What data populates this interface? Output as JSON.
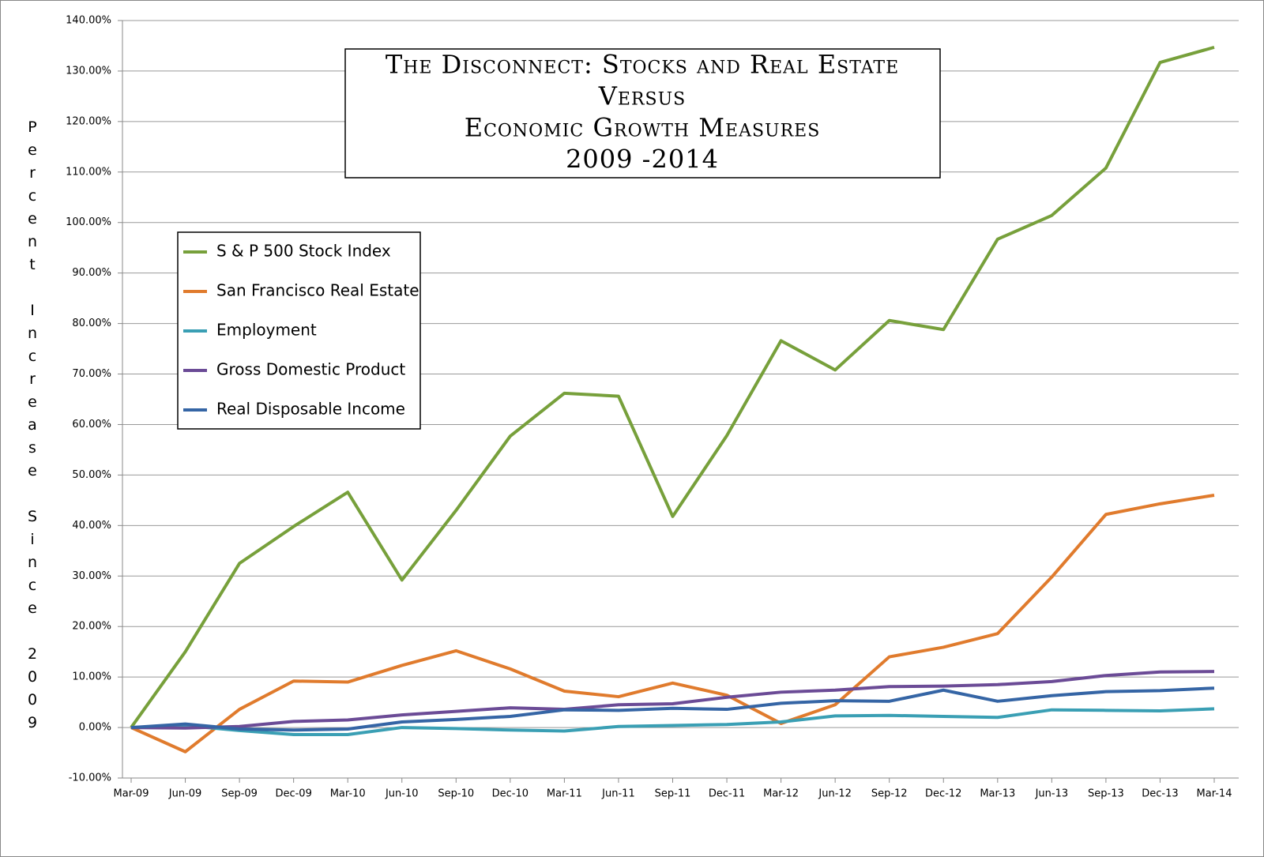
{
  "chart_data": {
    "type": "line",
    "title": [
      "The Disconnect: Stocks and Real Estate",
      "Versus",
      "Economic Growth Measures",
      "2009 -2014"
    ],
    "y_label": "Percent Increase Since 2009",
    "categories": [
      "Mar-09",
      "Jun-09",
      "Sep-09",
      "Dec-09",
      "Mar-10",
      "Jun-10",
      "Sep-10",
      "Dec-10",
      "Mar-11",
      "Jun-11",
      "Sep-11",
      "Dec-11",
      "Mar-12",
      "Jun-12",
      "Sep-12",
      "Dec-12",
      "Mar-13",
      "Jun-13",
      "Sep-13",
      "Dec-13",
      "Mar-14"
    ],
    "series": [
      {
        "name": "S & P 500 Stock Index",
        "color": "#77a03b",
        "values": [
          0,
          15,
          32.5,
          39.8,
          46.6,
          29.2,
          43,
          57.7,
          66.2,
          65.6,
          41.8,
          57.8,
          76.6,
          70.8,
          80.6,
          78.8,
          96.7,
          101.4,
          110.8,
          131.7,
          134.7
        ]
      },
      {
        "name": "San Francisco Real Estate",
        "color": "#e07b2d",
        "values": [
          0,
          -4.8,
          3.6,
          9.2,
          9.0,
          12.3,
          15.2,
          11.6,
          7.2,
          6.1,
          8.8,
          6.4,
          0.8,
          4.5,
          14.0,
          15.9,
          18.6,
          29.8,
          42.2,
          44.3,
          46.0
        ]
      },
      {
        "name": "Employment",
        "color": "#3a9fb4",
        "values": [
          0,
          0.4,
          -0.6,
          -1.4,
          -1.4,
          0,
          -0.2,
          -0.5,
          -0.7,
          0.2,
          0.4,
          0.6,
          1.1,
          2.3,
          2.4,
          2.2,
          2.0,
          3.5,
          3.4,
          3.3,
          3.7
        ]
      },
      {
        "name": "Gross Domestic Product",
        "color": "#6b4b96",
        "values": [
          0,
          -0.1,
          0.2,
          1.2,
          1.5,
          2.5,
          3.2,
          3.9,
          3.6,
          4.5,
          4.7,
          6.0,
          7.0,
          7.4,
          8.1,
          8.2,
          8.5,
          9.1,
          10.3,
          11.0,
          11.1
        ]
      },
      {
        "name": "Real Disposable Income",
        "color": "#3565a5",
        "values": [
          0,
          0.7,
          -0.3,
          -0.5,
          -0.3,
          1.1,
          1.6,
          2.2,
          3.5,
          3.4,
          3.8,
          3.6,
          4.8,
          5.3,
          5.2,
          7.4,
          5.2,
          6.3,
          7.1,
          7.3,
          7.8
        ]
      }
    ],
    "ylim": [
      -10,
      140
    ],
    "yticks": [
      {
        "value": -10,
        "label": "-10.00%"
      },
      {
        "value": 0,
        "label": "0.00%"
      },
      {
        "value": 10,
        "label": "10.00%"
      },
      {
        "value": 20,
        "label": "20.00%"
      },
      {
        "value": 30,
        "label": "30.00%"
      },
      {
        "value": 40,
        "label": "40.00%"
      },
      {
        "value": 50,
        "label": "50.00%"
      },
      {
        "value": 60,
        "label": "60.00%"
      },
      {
        "value": 70,
        "label": "70.00%"
      },
      {
        "value": 80,
        "label": "80.00%"
      },
      {
        "value": 90,
        "label": "90.00%"
      },
      {
        "value": 100,
        "label": "100.00%"
      },
      {
        "value": 110,
        "label": "110.00%"
      },
      {
        "value": 120,
        "label": "120.00%"
      },
      {
        "value": 130,
        "label": "130.00%"
      },
      {
        "value": 140,
        "label": "140.00%"
      }
    ],
    "grid": true
  }
}
